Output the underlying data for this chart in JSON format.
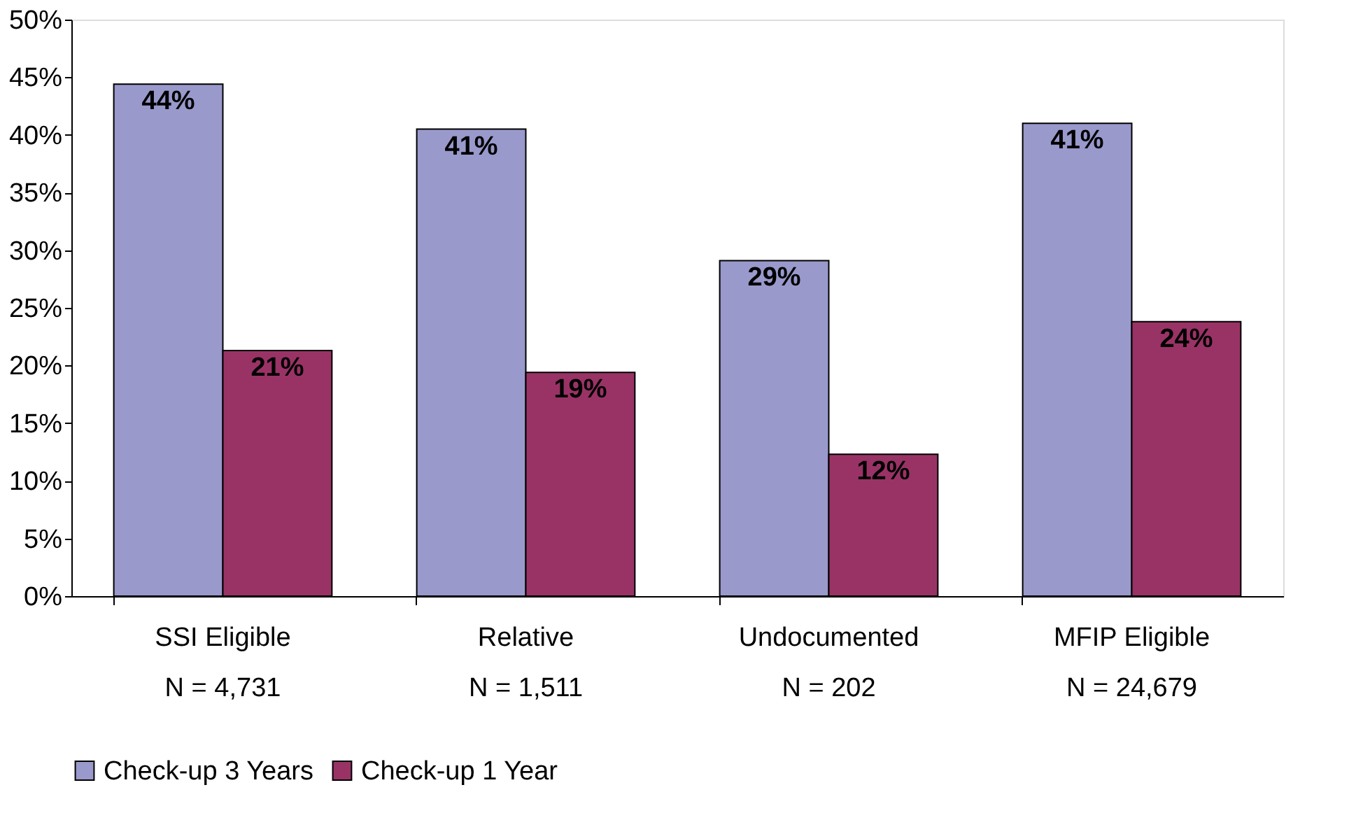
{
  "chart_data": {
    "type": "bar",
    "categories": [
      "SSI Eligible\nN = 4,731",
      "Relative\nN = 1,511",
      "Undocumented\nN = 202",
      "MFIP Eligible\nN = 24,679"
    ],
    "series": [
      {
        "name": "Check-up 3 Years",
        "color": "#9999cc",
        "values": [
          44.4,
          40.5,
          29.1,
          41.0
        ],
        "value_labels": [
          "44%",
          "41%",
          "29%",
          "41%"
        ]
      },
      {
        "name": "Check-up 1 Year",
        "color": "#993366",
        "values": [
          21.3,
          19.4,
          12.3,
          23.8
        ],
        "value_labels": [
          "21%",
          "19%",
          "12%",
          "24%"
        ]
      }
    ],
    "ylim": [
      0,
      50
    ],
    "yticks": [
      {
        "value": 0,
        "label": "0%"
      },
      {
        "value": 5,
        "label": "5%"
      },
      {
        "value": 10,
        "label": "10%"
      },
      {
        "value": 15,
        "label": "15%"
      },
      {
        "value": 20,
        "label": "20%"
      },
      {
        "value": 25,
        "label": "25%"
      },
      {
        "value": 30,
        "label": "30%"
      },
      {
        "value": 35,
        "label": "35%"
      },
      {
        "value": 40,
        "label": "40%"
      },
      {
        "value": 45,
        "label": "45%"
      },
      {
        "value": 50,
        "label": "50%"
      }
    ],
    "grid": false,
    "legend": "bottom"
  }
}
